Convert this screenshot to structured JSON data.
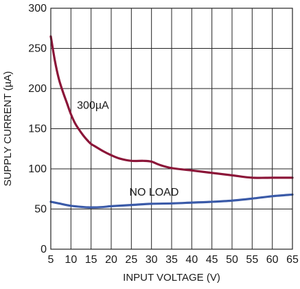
{
  "chart_data": {
    "type": "line",
    "xlabel": "INPUT VOLTAGE (V)",
    "ylabel": "SUPPLY CURRENT (µA)",
    "xlim": [
      5,
      65
    ],
    "ylim": [
      0,
      300
    ],
    "xticks": [
      5,
      10,
      15,
      20,
      25,
      30,
      35,
      40,
      45,
      50,
      55,
      60,
      65
    ],
    "yticks": [
      0,
      50,
      100,
      150,
      200,
      250,
      300
    ],
    "grid": true,
    "series": [
      {
        "name": "300µA",
        "color": "#8b1538",
        "x": [
          5,
          6,
          7,
          8,
          9,
          10,
          11,
          12,
          13,
          14,
          15,
          16,
          18,
          20,
          22,
          25,
          28,
          30,
          32,
          35,
          40,
          45,
          50,
          55,
          60,
          65
        ],
        "y": [
          265,
          235,
          212,
          196,
          182,
          168,
          157,
          149,
          142,
          136,
          131,
          128,
          122,
          117,
          113,
          110,
          110,
          109,
          105,
          101,
          98,
          95,
          92,
          89,
          89,
          89
        ]
      },
      {
        "name": "NO LOAD",
        "color": "#3a5aa8",
        "x": [
          5,
          7,
          10,
          13,
          15,
          18,
          20,
          25,
          30,
          35,
          40,
          45,
          50,
          55,
          60,
          65
        ],
        "y": [
          59,
          57,
          54,
          52.5,
          52,
          52.5,
          53.5,
          55,
          56.5,
          57,
          58,
          59,
          60.5,
          63,
          66,
          68
        ]
      }
    ]
  }
}
